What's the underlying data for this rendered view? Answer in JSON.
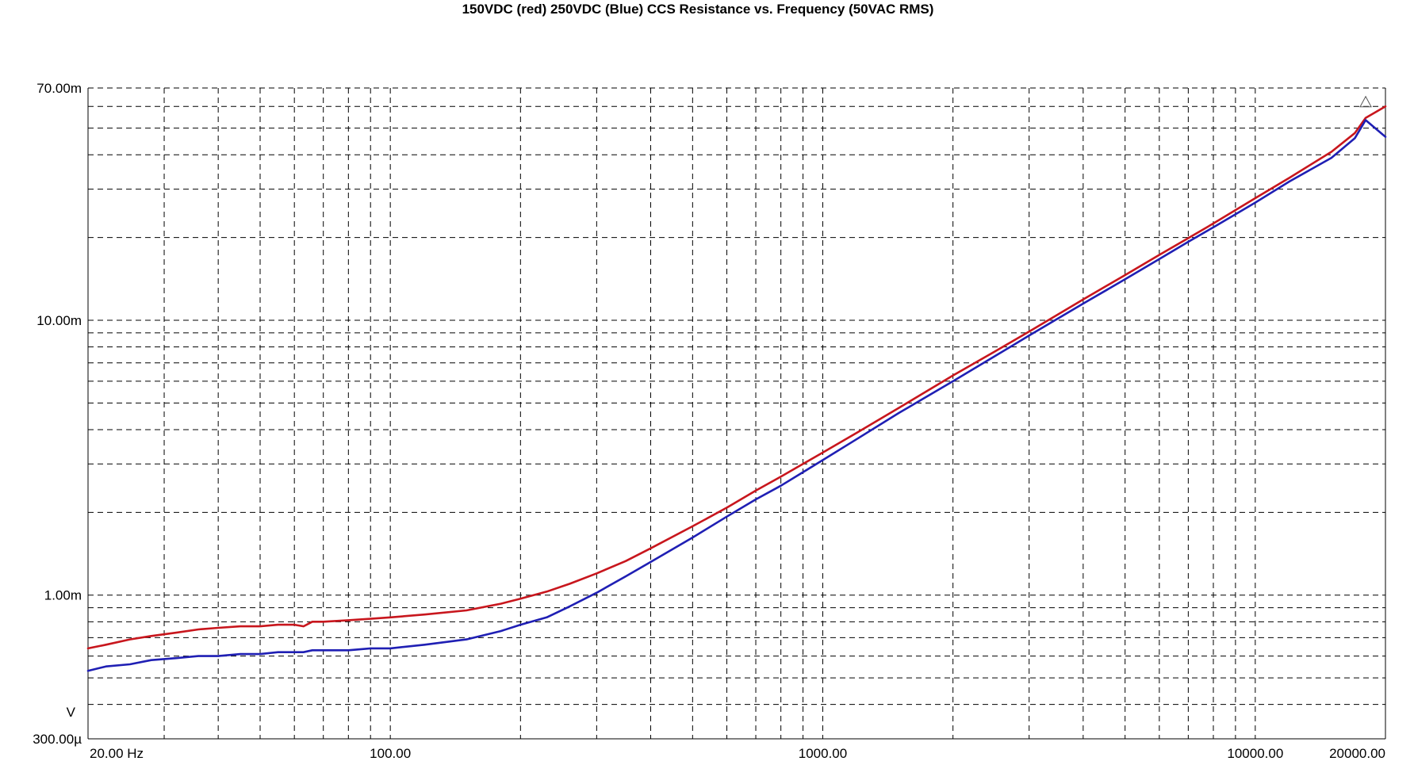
{
  "chart_data": {
    "type": "line",
    "title": "150VDC (red) 250VDC (Blue) CCS Resistance vs. Frequency (50VAC RMS)",
    "xlabel": "",
    "ylabel": "V",
    "xscale": "log",
    "yscale": "log",
    "xlim": [
      20,
      20000
    ],
    "ylim": [
      0.0003,
      0.07
    ],
    "grid": true,
    "legend": "none",
    "x_tick_values": [
      20,
      100,
      1000,
      10000,
      20000
    ],
    "x_tick_labels": [
      "20.00 Hz",
      "100.00",
      "1000.00",
      "10000.00",
      "20000.00"
    ],
    "y_tick_values": [
      0.07,
      0.01,
      0.001,
      0.0003
    ],
    "y_tick_labels": [
      "70.00m",
      "10.00m",
      "1.00m",
      "300.00µ"
    ],
    "series": [
      {
        "color": "#c8161d",
        "x": [
          20,
          22,
          25,
          28,
          32,
          36,
          40,
          45,
          50,
          55,
          60,
          63,
          66,
          70,
          80,
          90,
          100,
          120,
          150,
          180,
          200,
          230,
          260,
          300,
          350,
          400,
          500,
          600,
          700,
          800,
          1000,
          1200,
          1500,
          2000,
          2500,
          3000,
          4000,
          5000,
          6000,
          7000,
          8000,
          10000,
          12000,
          15000,
          17000,
          18000,
          20000
        ],
        "y": [
          0.00064,
          0.00066,
          0.00069,
          0.00071,
          0.00073,
          0.00075,
          0.00076,
          0.00077,
          0.00077,
          0.00078,
          0.00078,
          0.00077,
          0.0008,
          0.0008,
          0.00081,
          0.00082,
          0.00083,
          0.00085,
          0.00088,
          0.00093,
          0.00097,
          0.00103,
          0.0011,
          0.0012,
          0.00133,
          0.00148,
          0.00178,
          0.00208,
          0.0024,
          0.0027,
          0.0033,
          0.0039,
          0.0048,
          0.0063,
          0.0077,
          0.0091,
          0.0119,
          0.0146,
          0.0173,
          0.0199,
          0.0225,
          0.0278,
          0.033,
          0.041,
          0.048,
          0.0545,
          0.06
        ]
      },
      {
        "color": "#1f1fb4",
        "x": [
          20,
          22,
          25,
          28,
          32,
          36,
          40,
          45,
          50,
          55,
          60,
          63,
          66,
          70,
          80,
          90,
          100,
          120,
          150,
          180,
          200,
          230,
          260,
          300,
          350,
          400,
          500,
          600,
          700,
          800,
          1000,
          1200,
          1500,
          2000,
          2500,
          3000,
          4000,
          5000,
          6000,
          7000,
          8000,
          10000,
          12000,
          15000,
          17000,
          18000,
          20000
        ],
        "y": [
          0.00053,
          0.00055,
          0.00056,
          0.00058,
          0.00059,
          0.0006,
          0.0006,
          0.00061,
          0.00061,
          0.00062,
          0.00062,
          0.00062,
          0.00063,
          0.00063,
          0.00063,
          0.00064,
          0.00064,
          0.00066,
          0.00069,
          0.00074,
          0.00078,
          0.00083,
          0.00091,
          0.00102,
          0.00117,
          0.00132,
          0.00162,
          0.00193,
          0.00223,
          0.0025,
          0.0031,
          0.0037,
          0.0046,
          0.006,
          0.0074,
          0.0088,
          0.0115,
          0.0141,
          0.0167,
          0.0193,
          0.0218,
          0.0268,
          0.032,
          0.039,
          0.046,
          0.0535,
          0.0465
        ]
      }
    ]
  }
}
